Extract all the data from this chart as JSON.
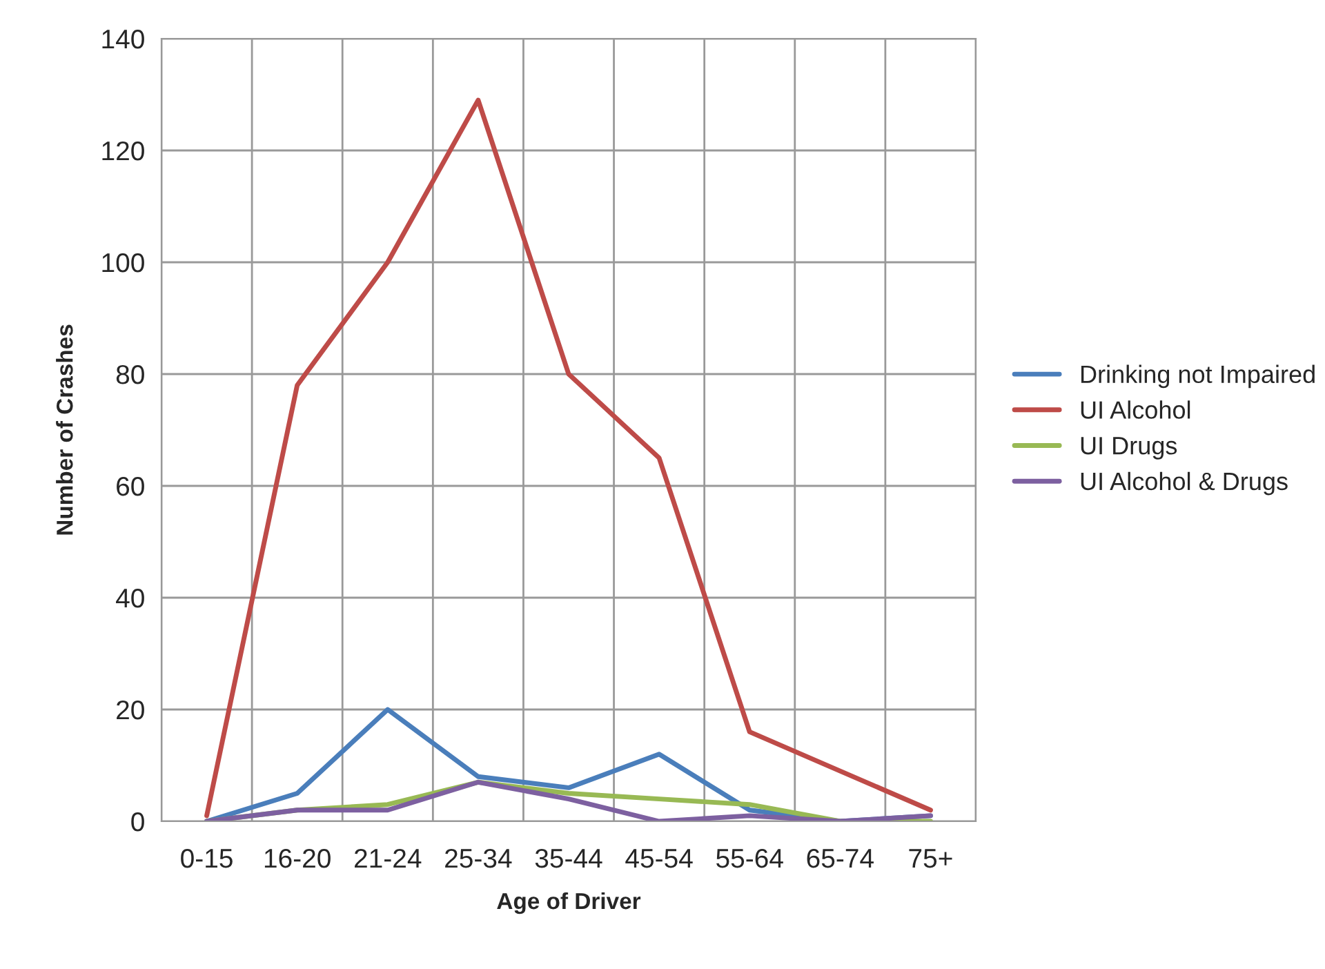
{
  "chart_data": {
    "type": "line",
    "xlabel": "Age of Driver",
    "ylabel": "Number of Crashes",
    "categories": [
      "0-15",
      "16-20",
      "21-24",
      "25-34",
      "35-44",
      "45-54",
      "55-64",
      "65-74",
      "75+"
    ],
    "series": [
      {
        "name": "Drinking not Impaired",
        "color": "#4a7ebb",
        "values": [
          0,
          5,
          20,
          8,
          6,
          12,
          2,
          0,
          1
        ]
      },
      {
        "name": "UI Alcohol",
        "color": "#be4b48",
        "values": [
          1,
          78,
          100,
          129,
          80,
          65,
          16,
          9,
          2
        ]
      },
      {
        "name": "UI Drugs",
        "color": "#98b954",
        "values": [
          0,
          2,
          3,
          7,
          5,
          4,
          3,
          0,
          0
        ]
      },
      {
        "name": "UI Alcohol & Drugs",
        "color": "#7d60a0",
        "values": [
          0,
          2,
          2,
          7,
          4,
          0,
          1,
          0,
          1
        ]
      }
    ],
    "ylim": [
      0,
      140
    ],
    "yticks": [
      0,
      20,
      40,
      60,
      80,
      100,
      120,
      140
    ],
    "grid": true,
    "legend": "right",
    "marker": "none",
    "line_style": "solid"
  }
}
